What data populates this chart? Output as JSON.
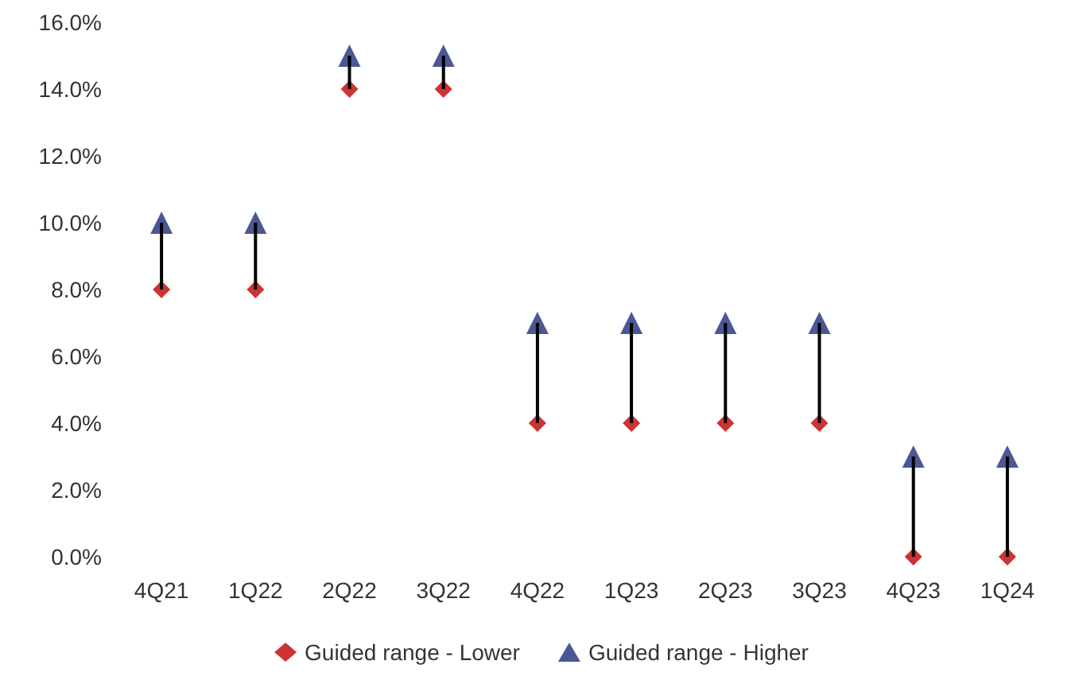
{
  "chart_data": {
    "type": "scatter",
    "categories": [
      "4Q21",
      "1Q22",
      "2Q22",
      "3Q22",
      "4Q22",
      "1Q23",
      "2Q23",
      "3Q23",
      "4Q23",
      "1Q24"
    ],
    "series": [
      {
        "type": "bar",
        "color": "#000000",
        "base": [
          8,
          8,
          14,
          14,
          4,
          4,
          4,
          4,
          0,
          0
        ],
        "values": [
          2,
          2,
          1,
          1,
          3,
          3,
          3,
          3,
          3,
          3
        ]
      },
      {
        "name": "Guided range - Lower",
        "color": "#c00000",
        "marker": "diamond",
        "values": [
          8,
          8,
          14,
          14,
          4,
          4,
          4,
          4,
          0,
          0
        ]
      },
      {
        "name": "Guided range - Higher",
        "color": "#1f2d7b",
        "marker": "triangle",
        "values": [
          10,
          10,
          15,
          15,
          7,
          7,
          7,
          7,
          3,
          3
        ]
      }
    ],
    "ylim": [
      0,
      16
    ],
    "yticks": [
      {
        "value": 0,
        "label": "0.0%"
      },
      {
        "value": 2,
        "label": "2.0%"
      },
      {
        "value": 4,
        "label": "4.0%"
      },
      {
        "value": 6,
        "label": "6.0%"
      },
      {
        "value": 8,
        "label": "8.0%"
      },
      {
        "value": 10,
        "label": "10.0%"
      },
      {
        "value": 12,
        "label": "12.0%"
      },
      {
        "value": 14,
        "label": "14.0%"
      },
      {
        "value": 16,
        "label": "16.0%"
      }
    ],
    "grid": false,
    "legend": "bottom"
  }
}
